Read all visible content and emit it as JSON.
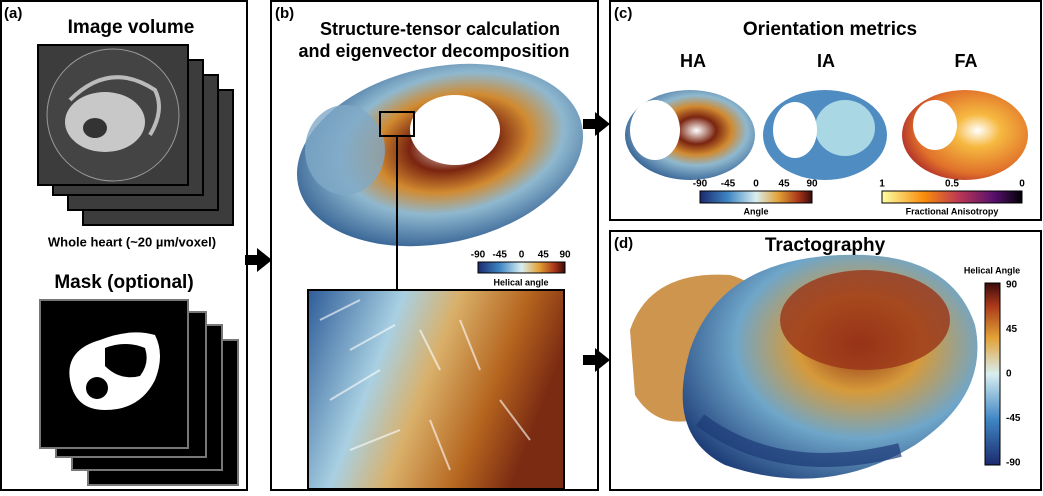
{
  "panels": {
    "a": {
      "label": "(a)",
      "title": "Image volume",
      "caption": "Whole heart (~20 µm/voxel)",
      "mask_title": "Mask (optional)"
    },
    "b": {
      "label": "(b)",
      "title_line1": "Structure-tensor calculation",
      "title_line2": "and eigenvector decomposition",
      "colorbar": {
        "ticks": [
          -90,
          -45,
          0,
          45,
          90
        ],
        "label": "Helical angle"
      }
    },
    "c": {
      "label": "(c)",
      "title": "Orientation metrics",
      "maps": [
        "HA",
        "IA",
        "FA"
      ],
      "angle_colorbar": {
        "ticks": [
          -90,
          -45,
          0,
          45,
          90
        ],
        "label": "Angle"
      },
      "fa_colorbar": {
        "ticks": [
          1,
          0.5,
          0
        ],
        "label": "Fractional Anisotropy"
      }
    },
    "d": {
      "label": "(d)",
      "title": "Tractography",
      "colorbar": {
        "title": "Helical Angle",
        "ticks": [
          90,
          45,
          0,
          -45,
          -90
        ]
      }
    }
  }
}
